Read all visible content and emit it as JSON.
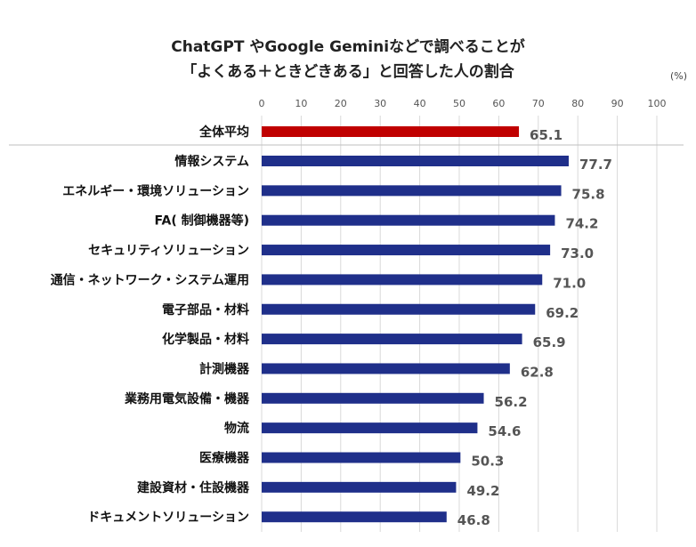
{
  "chart_data": {
    "type": "bar",
    "orientation": "horizontal",
    "title": [
      "ChatGPT やGoogle Geminiなどで調べることが",
      "「よくある＋ときどきある」と回答した人の割合"
    ],
    "unit": "(%)",
    "xlim": [
      0,
      100
    ],
    "xticks": [
      0,
      10,
      20,
      30,
      40,
      50,
      60,
      70,
      80,
      90,
      100
    ],
    "grid": true,
    "categories": [
      "全体平均",
      "情報システム",
      "エネルギー・環境ソリューション",
      "FA( 制御機器等)",
      "セキュリティソリューション",
      "通信・ネットワーク・システム運用",
      "電子部品・材料",
      "化学製品・材料",
      "計測機器",
      "業務用電気設備・機器",
      "物流",
      "医療機器",
      "建設資材・住設機器",
      "ドキュメントソリューション"
    ],
    "values": [
      65.1,
      77.7,
      75.8,
      74.2,
      73.0,
      71.0,
      69.2,
      65.9,
      62.8,
      56.2,
      54.6,
      50.3,
      49.2,
      46.8
    ],
    "value_labels": [
      "65.1",
      "77.7",
      "75.8",
      "74.2",
      "73.0",
      "71.0",
      "69.2",
      "65.9",
      "62.8",
      "56.2",
      "54.6",
      "50.3",
      "49.2",
      "46.8"
    ],
    "colors": {
      "highlight": "#c00000",
      "bar": "#1f2f8a",
      "grid": "#d9d9d9"
    }
  }
}
